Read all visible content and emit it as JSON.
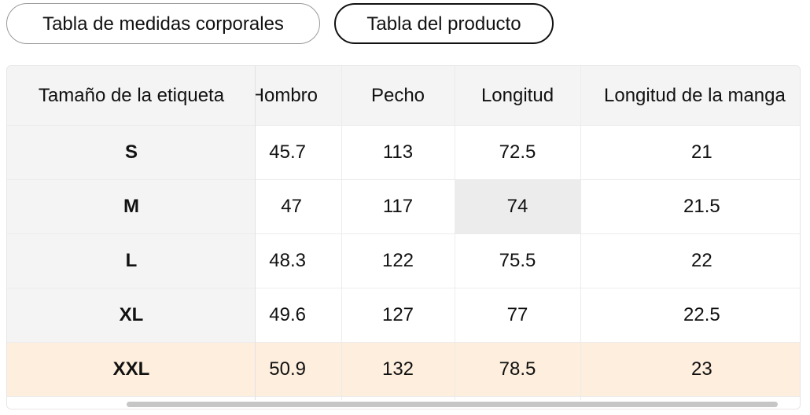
{
  "tabs": {
    "body_chart": "Tabla de medidas corporales",
    "product_chart": "Tabla del producto"
  },
  "table": {
    "headers": {
      "size": "Tamaño de la etiqueta",
      "shoulder": "Hombro",
      "chest": "Pecho",
      "length": "Longitud",
      "sleeve": "Longitud de la manga"
    },
    "rows": [
      {
        "size": "S",
        "shoulder": "45.7",
        "chest": "113",
        "length": "72.5",
        "sleeve": "21"
      },
      {
        "size": "M",
        "shoulder": "47",
        "chest": "117",
        "length": "74",
        "sleeve": "21.5"
      },
      {
        "size": "L",
        "shoulder": "48.3",
        "chest": "122",
        "length": "75.5",
        "sleeve": "22"
      },
      {
        "size": "XL",
        "shoulder": "49.6",
        "chest": "127",
        "length": "77",
        "sleeve": "22.5"
      },
      {
        "size": "XXL",
        "shoulder": "50.9",
        "chest": "132",
        "length": "78.5",
        "sleeve": "23"
      }
    ],
    "highlighted_row": "XXL",
    "highlight_color": "#fdeedd",
    "header_bg": "#f4f4f4"
  }
}
